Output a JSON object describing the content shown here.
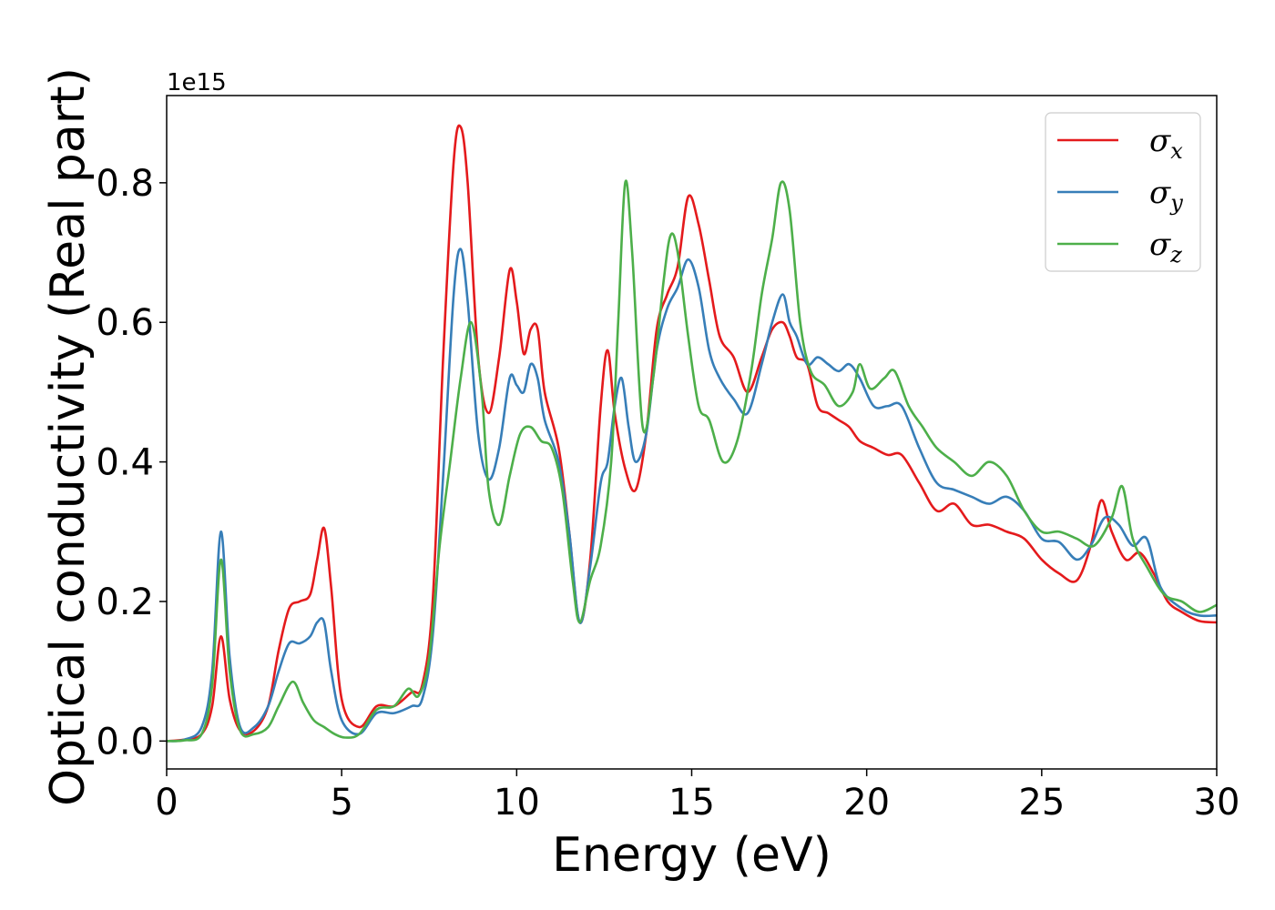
{
  "chart_data": {
    "type": "line",
    "xlabel": "Energy (eV)",
    "ylabel": "Optical conductivity (Real part)",
    "y_offset_label": "1e15",
    "xlim": [
      0,
      30
    ],
    "ylim": [
      -0.04,
      0.925
    ],
    "xticks": [
      0,
      5,
      10,
      15,
      20,
      25,
      30
    ],
    "xtick_labels": [
      "0",
      "5",
      "10",
      "15",
      "20",
      "25",
      "30"
    ],
    "yticks": [
      0.0,
      0.2,
      0.4,
      0.6,
      0.8
    ],
    "ytick_labels": [
      "0.0",
      "0.2",
      "0.4",
      "0.6",
      "0.8"
    ],
    "grid": false,
    "legend_position": "top-right",
    "series": [
      {
        "name": "σx",
        "symbol": "σ",
        "subscript": "x",
        "color": "#e41a1c",
        "x": [
          0,
          0.5,
          1.0,
          1.3,
          1.55,
          1.8,
          2.1,
          2.5,
          2.9,
          3.2,
          3.5,
          3.8,
          4.1,
          4.3,
          4.5,
          4.7,
          5.0,
          5.5,
          6.0,
          6.5,
          7.0,
          7.3,
          7.6,
          7.9,
          8.2,
          8.4,
          8.6,
          8.9,
          9.2,
          9.5,
          9.8,
          10.0,
          10.2,
          10.4,
          10.6,
          10.8,
          11.2,
          11.5,
          11.8,
          12.1,
          12.4,
          12.6,
          12.8,
          13.1,
          13.4,
          13.7,
          14.0,
          14.3,
          14.6,
          14.9,
          15.2,
          15.5,
          15.8,
          16.2,
          16.6,
          17.0,
          17.3,
          17.6,
          17.8,
          18.0,
          18.3,
          18.6,
          18.9,
          19.2,
          19.5,
          19.8,
          20.2,
          20.6,
          21.0,
          21.5,
          22.0,
          22.5,
          23.0,
          23.5,
          24.0,
          24.5,
          25.0,
          25.5,
          26.0,
          26.4,
          26.7,
          27.0,
          27.4,
          27.8,
          28.2,
          28.6,
          29.0,
          29.5,
          30.0
        ],
        "y": [
          0.0,
          0.002,
          0.01,
          0.05,
          0.15,
          0.06,
          0.015,
          0.015,
          0.05,
          0.13,
          0.19,
          0.2,
          0.21,
          0.26,
          0.305,
          0.22,
          0.06,
          0.02,
          0.05,
          0.05,
          0.07,
          0.08,
          0.2,
          0.55,
          0.83,
          0.88,
          0.8,
          0.55,
          0.47,
          0.55,
          0.675,
          0.63,
          0.555,
          0.59,
          0.59,
          0.5,
          0.42,
          0.3,
          0.17,
          0.26,
          0.48,
          0.56,
          0.47,
          0.39,
          0.36,
          0.44,
          0.59,
          0.64,
          0.68,
          0.78,
          0.74,
          0.66,
          0.58,
          0.55,
          0.5,
          0.55,
          0.59,
          0.6,
          0.58,
          0.55,
          0.54,
          0.48,
          0.47,
          0.46,
          0.45,
          0.43,
          0.42,
          0.41,
          0.41,
          0.37,
          0.33,
          0.34,
          0.31,
          0.31,
          0.3,
          0.29,
          0.26,
          0.24,
          0.23,
          0.28,
          0.345,
          0.3,
          0.26,
          0.27,
          0.24,
          0.2,
          0.185,
          0.172,
          0.17
        ]
      },
      {
        "name": "σy",
        "symbol": "σ",
        "subscript": "y",
        "color": "#377eb8",
        "x": [
          0,
          0.5,
          1.0,
          1.3,
          1.55,
          1.8,
          2.1,
          2.5,
          2.9,
          3.2,
          3.5,
          3.8,
          4.1,
          4.3,
          4.5,
          4.7,
          5.0,
          5.5,
          6.0,
          6.5,
          7.0,
          7.3,
          7.6,
          7.9,
          8.2,
          8.4,
          8.6,
          8.9,
          9.2,
          9.5,
          9.8,
          10.0,
          10.2,
          10.4,
          10.6,
          10.8,
          11.2,
          11.5,
          11.8,
          12.1,
          12.4,
          12.6,
          12.8,
          13.0,
          13.2,
          13.4,
          13.7,
          14.0,
          14.3,
          14.6,
          14.9,
          15.2,
          15.5,
          15.8,
          16.2,
          16.6,
          17.0,
          17.3,
          17.6,
          17.8,
          18.0,
          18.3,
          18.6,
          18.9,
          19.2,
          19.5,
          19.8,
          20.2,
          20.6,
          21.0,
          21.5,
          22.0,
          22.5,
          23.0,
          23.5,
          24.0,
          24.5,
          25.0,
          25.5,
          26.0,
          26.4,
          26.8,
          27.2,
          27.6,
          28.0,
          28.4,
          29.0,
          29.5,
          30.0
        ],
        "y": [
          0.0,
          0.002,
          0.02,
          0.1,
          0.3,
          0.12,
          0.02,
          0.02,
          0.05,
          0.1,
          0.14,
          0.14,
          0.15,
          0.17,
          0.17,
          0.1,
          0.03,
          0.01,
          0.04,
          0.04,
          0.05,
          0.06,
          0.15,
          0.38,
          0.64,
          0.705,
          0.63,
          0.44,
          0.375,
          0.42,
          0.52,
          0.51,
          0.5,
          0.54,
          0.52,
          0.46,
          0.4,
          0.3,
          0.17,
          0.25,
          0.37,
          0.4,
          0.48,
          0.52,
          0.45,
          0.4,
          0.44,
          0.56,
          0.62,
          0.65,
          0.69,
          0.65,
          0.56,
          0.52,
          0.49,
          0.47,
          0.54,
          0.6,
          0.64,
          0.6,
          0.58,
          0.54,
          0.55,
          0.54,
          0.53,
          0.54,
          0.52,
          0.48,
          0.48,
          0.48,
          0.42,
          0.37,
          0.36,
          0.35,
          0.34,
          0.35,
          0.33,
          0.29,
          0.285,
          0.26,
          0.28,
          0.32,
          0.31,
          0.28,
          0.29,
          0.22,
          0.19,
          0.18,
          0.18
        ]
      },
      {
        "name": "σz",
        "symbol": "σ",
        "subscript": "z",
        "color": "#4daf4a",
        "x": [
          0,
          0.5,
          1.0,
          1.3,
          1.55,
          1.8,
          2.1,
          2.5,
          2.9,
          3.2,
          3.6,
          3.9,
          4.2,
          4.5,
          4.8,
          5.1,
          5.5,
          6.0,
          6.5,
          6.9,
          7.2,
          7.5,
          7.8,
          8.1,
          8.4,
          8.7,
          9.0,
          9.2,
          9.5,
          9.8,
          10.1,
          10.4,
          10.7,
          11.0,
          11.3,
          11.6,
          11.8,
          12.1,
          12.4,
          12.7,
          12.9,
          13.1,
          13.3,
          13.6,
          13.9,
          14.2,
          14.4,
          14.6,
          14.9,
          15.2,
          15.5,
          15.9,
          16.3,
          16.7,
          17.0,
          17.3,
          17.55,
          17.8,
          18.1,
          18.4,
          18.8,
          19.2,
          19.6,
          19.8,
          20.1,
          20.5,
          20.8,
          21.2,
          21.6,
          22.0,
          22.5,
          23.0,
          23.5,
          24.0,
          24.5,
          25.0,
          25.5,
          26.0,
          26.5,
          27.0,
          27.3,
          27.6,
          28.0,
          28.5,
          29.0,
          29.5,
          30.0
        ],
        "y": [
          0.0,
          0.001,
          0.01,
          0.08,
          0.26,
          0.1,
          0.015,
          0.01,
          0.02,
          0.05,
          0.085,
          0.055,
          0.03,
          0.02,
          0.01,
          0.005,
          0.01,
          0.045,
          0.05,
          0.075,
          0.065,
          0.12,
          0.28,
          0.4,
          0.52,
          0.6,
          0.5,
          0.36,
          0.31,
          0.38,
          0.44,
          0.45,
          0.43,
          0.42,
          0.36,
          0.23,
          0.17,
          0.23,
          0.28,
          0.4,
          0.6,
          0.8,
          0.7,
          0.45,
          0.52,
          0.66,
          0.725,
          0.7,
          0.58,
          0.48,
          0.46,
          0.4,
          0.43,
          0.53,
          0.64,
          0.72,
          0.8,
          0.76,
          0.6,
          0.53,
          0.51,
          0.48,
          0.5,
          0.54,
          0.505,
          0.52,
          0.53,
          0.48,
          0.45,
          0.42,
          0.4,
          0.38,
          0.4,
          0.38,
          0.33,
          0.3,
          0.3,
          0.29,
          0.28,
          0.32,
          0.365,
          0.29,
          0.25,
          0.21,
          0.2,
          0.185,
          0.195
        ]
      }
    ]
  }
}
